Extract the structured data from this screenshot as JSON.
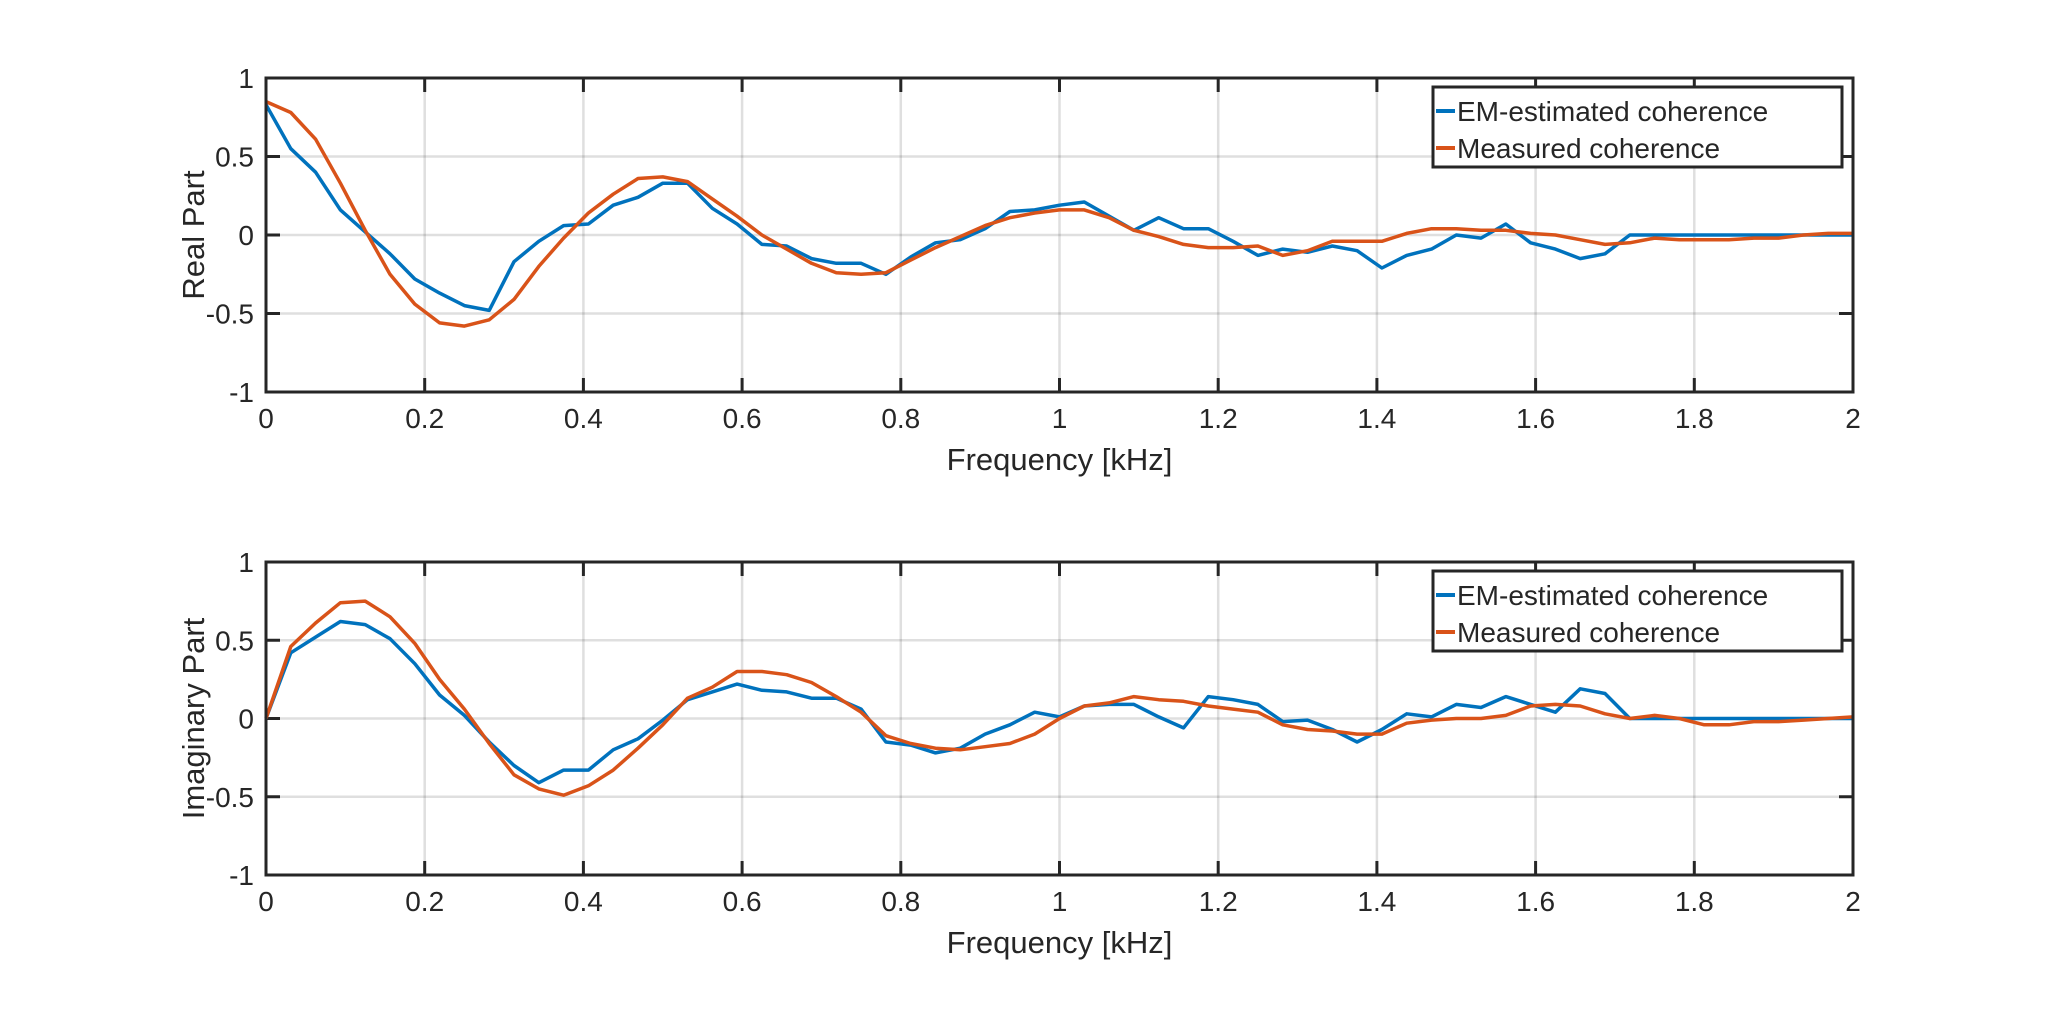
{
  "chart_data": [
    {
      "type": "line",
      "title": "",
      "xlabel": "Frequency [kHz]",
      "ylabel": "Real Part",
      "xlim": [
        0,
        2
      ],
      "ylim": [
        -1,
        1
      ],
      "xticks": [
        "0",
        "0.2",
        "0.4",
        "0.6",
        "0.8",
        "1",
        "1.2",
        "1.4",
        "1.6",
        "1.8",
        "2"
      ],
      "yticks": [
        "-1",
        "-0.5",
        "0",
        "0.5",
        "1"
      ],
      "grid": true,
      "legend_position": "top-right",
      "x_start": 0,
      "x_step": 0.03125,
      "series": [
        {
          "name": "EM-estimated coherence",
          "color": "#0072BD",
          "values": [
            0.83,
            0.55,
            0.4,
            0.16,
            0.02,
            -0.12,
            -0.28,
            -0.37,
            -0.45,
            -0.48,
            -0.17,
            -0.04,
            0.06,
            0.07,
            0.19,
            0.24,
            0.33,
            0.33,
            0.17,
            0.07,
            -0.06,
            -0.07,
            -0.15,
            -0.18,
            -0.18,
            -0.25,
            -0.14,
            -0.05,
            -0.03,
            0.04,
            0.15,
            0.16,
            0.19,
            0.21,
            0.12,
            0.03,
            0.11,
            0.04,
            0.04,
            -0.04,
            -0.13,
            -0.09,
            -0.11,
            -0.07,
            -0.1,
            -0.21,
            -0.13,
            -0.09,
            0,
            -0.02,
            0.07,
            -0.05,
            -0.09,
            -0.15,
            -0.12,
            0,
            0,
            0,
            0,
            0,
            0,
            0,
            0,
            0,
            0
          ]
        },
        {
          "name": "Measured coherence",
          "color": "#D95319",
          "values": [
            0.85,
            0.78,
            0.61,
            0.33,
            0.03,
            -0.25,
            -0.44,
            -0.56,
            -0.58,
            -0.54,
            -0.41,
            -0.2,
            -0.02,
            0.14,
            0.26,
            0.36,
            0.37,
            0.34,
            0.23,
            0.12,
            0,
            -0.09,
            -0.18,
            -0.24,
            -0.25,
            -0.24,
            -0.16,
            -0.08,
            -0.01,
            0.06,
            0.11,
            0.14,
            0.16,
            0.16,
            0.11,
            0.03,
            -0.01,
            -0.06,
            -0.08,
            -0.08,
            -0.07,
            -0.13,
            -0.1,
            -0.04,
            -0.04,
            -0.04,
            0.01,
            0.04,
            0.04,
            0.03,
            0.03,
            0.01,
            0,
            -0.03,
            -0.06,
            -0.05,
            -0.02,
            -0.03,
            -0.03,
            -0.03,
            -0.02,
            -0.02,
            0,
            0.01,
            0.01
          ]
        }
      ]
    },
    {
      "type": "line",
      "title": "",
      "xlabel": "Frequency [kHz]",
      "ylabel": "Imaginary Part",
      "xlim": [
        0,
        2
      ],
      "ylim": [
        -1,
        1
      ],
      "xticks": [
        "0",
        "0.2",
        "0.4",
        "0.6",
        "0.8",
        "1",
        "1.2",
        "1.4",
        "1.6",
        "1.8",
        "2"
      ],
      "yticks": [
        "-1",
        "-0.5",
        "0",
        "0.5",
        "1"
      ],
      "grid": true,
      "legend_position": "top-right",
      "x_start": 0,
      "x_step": 0.03125,
      "series": [
        {
          "name": "EM-estimated coherence",
          "color": "#0072BD",
          "values": [
            0,
            0.42,
            0.52,
            0.62,
            0.6,
            0.51,
            0.35,
            0.15,
            0.02,
            -0.15,
            -0.3,
            -0.41,
            -0.33,
            -0.33,
            -0.2,
            -0.13,
            -0.01,
            0.12,
            0.17,
            0.22,
            0.18,
            0.17,
            0.13,
            0.13,
            0.06,
            -0.15,
            -0.17,
            -0.22,
            -0.19,
            -0.1,
            -0.04,
            0.04,
            0.01,
            0.08,
            0.09,
            0.09,
            0.01,
            -0.06,
            0.14,
            0.12,
            0.09,
            -0.02,
            -0.01,
            -0.07,
            -0.15,
            -0.07,
            0.03,
            0.01,
            0.09,
            0.07,
            0.14,
            0.09,
            0.04,
            0.19,
            0.16,
            0,
            0,
            0,
            0,
            0,
            0,
            0,
            0,
            0,
            0
          ]
        },
        {
          "name": "Measured coherence",
          "color": "#D95319",
          "values": [
            0,
            0.46,
            0.61,
            0.74,
            0.75,
            0.65,
            0.48,
            0.25,
            0.06,
            -0.16,
            -0.36,
            -0.45,
            -0.49,
            -0.43,
            -0.33,
            -0.19,
            -0.04,
            0.13,
            0.2,
            0.3,
            0.3,
            0.28,
            0.23,
            0.14,
            0.04,
            -0.11,
            -0.16,
            -0.19,
            -0.2,
            -0.18,
            -0.16,
            -0.1,
            0,
            0.08,
            0.1,
            0.14,
            0.12,
            0.11,
            0.08,
            0.06,
            0.04,
            -0.04,
            -0.07,
            -0.08,
            -0.1,
            -0.1,
            -0.03,
            -0.01,
            0,
            0,
            0.02,
            0.08,
            0.09,
            0.08,
            0.03,
            0,
            0.02,
            0,
            -0.04,
            -0.04,
            -0.02,
            -0.02,
            -0.01,
            0,
            0.01
          ]
        }
      ]
    }
  ]
}
